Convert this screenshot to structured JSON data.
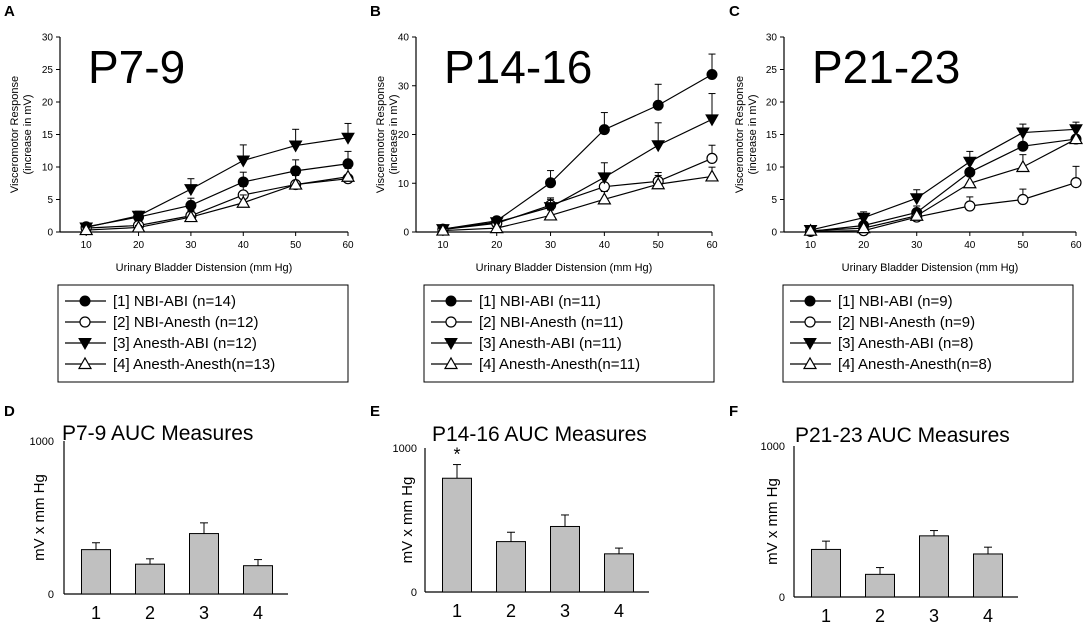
{
  "chart_data": [
    {
      "type": "line",
      "panel": "A",
      "title": "P7-9",
      "xlabel": "Urinary Bladder Distension (mm Hg)",
      "ylabel": "Visceromotor Response (increase in mV)",
      "ylabel_lines": [
        "Visceromotor Response",
        "(increase in mV)"
      ],
      "xlim": [
        5,
        60
      ],
      "ylim": [
        0,
        30
      ],
      "x": [
        10,
        20,
        30,
        40,
        50,
        60
      ],
      "xticks": [
        "10",
        "20",
        "30",
        "40",
        "50",
        "60"
      ],
      "yticks": [
        "0",
        "5",
        "10",
        "15",
        "20",
        "25",
        "30"
      ],
      "legend_placement": "below",
      "series": [
        {
          "name": "[1] NBI-ABI (n=14)",
          "marker": "circle-filled",
          "values": [
            0.8,
            2.3,
            4.1,
            7.7,
            9.4,
            10.5
          ],
          "errors": [
            0.4,
            0.6,
            1.1,
            1.5,
            1.7,
            1.9
          ]
        },
        {
          "name": "[2] NBI-Anesth (n=12)",
          "marker": "circle-open",
          "values": [
            0.6,
            1.0,
            2.5,
            5.7,
            7.3,
            8.2
          ],
          "errors": [
            0.3,
            0.4,
            0.8,
            1.3,
            1.4,
            1.6
          ]
        },
        {
          "name": "[3] Anesth-ABI (n=12)",
          "marker": "triangle-down-filled",
          "values": [
            0.7,
            2.5,
            6.6,
            11.0,
            13.3,
            14.5
          ],
          "errors": [
            0.3,
            0.7,
            1.6,
            2.4,
            2.5,
            2.2
          ]
        },
        {
          "name": "[4] Anesth-Anesth(n=13)",
          "marker": "triangle-up-open",
          "values": [
            0.3,
            0.7,
            2.3,
            4.5,
            7.3,
            8.5
          ],
          "errors": [
            0.2,
            0.3,
            0.8,
            1.2,
            1.4,
            1.3
          ]
        }
      ]
    },
    {
      "type": "line",
      "panel": "B",
      "title": "P14-16",
      "xlabel": "Urinary Bladder Distension (mm Hg)",
      "ylabel": "Visceromotor Response (increase in mV)",
      "ylabel_lines": [
        "Visceromotor Response",
        "(increase in mV)"
      ],
      "xlim": [
        5,
        60
      ],
      "ylim": [
        0,
        40
      ],
      "x": [
        10,
        20,
        30,
        40,
        50,
        60
      ],
      "xticks": [
        "10",
        "20",
        "30",
        "40",
        "50",
        "60"
      ],
      "yticks": [
        "0",
        "10",
        "20",
        "30",
        "40"
      ],
      "legend_placement": "below",
      "series": [
        {
          "name": "[1] NBI-ABI (n=11)",
          "marker": "circle-filled",
          "values": [
            0.6,
            2.3,
            10.1,
            21.0,
            26.0,
            32.3
          ],
          "errors": [
            0.4,
            0.8,
            2.5,
            3.5,
            4.3,
            4.2
          ]
        },
        {
          "name": "[2] NBI-Anesth (n=11)",
          "marker": "circle-open",
          "values": [
            0.5,
            1.8,
            5.5,
            9.3,
            10.4,
            15.1
          ],
          "errors": [
            0.3,
            0.7,
            1.5,
            2.3,
            1.8,
            2.7
          ]
        },
        {
          "name": "[3] Anesth-ABI (n=11)",
          "marker": "triangle-down-filled",
          "values": [
            0.6,
            2.0,
            5.1,
            11.2,
            17.8,
            23.1
          ],
          "errors": [
            0.3,
            0.8,
            1.6,
            3.0,
            4.6,
            5.3
          ]
        },
        {
          "name": "[4] Anesth-Anesth(n=11)",
          "marker": "triangle-up-open",
          "values": [
            0.3,
            0.8,
            3.4,
            6.7,
            9.8,
            11.4
          ],
          "errors": [
            0.2,
            0.4,
            1.1,
            1.6,
            1.8,
            1.9
          ]
        }
      ]
    },
    {
      "type": "line",
      "panel": "C",
      "title": "P21-23",
      "xlabel": "Urinary Bladder Distension (mm Hg)",
      "ylabel": "Visceromotor Response (increase in mV)",
      "ylabel_lines": [
        "Visceromotor Response",
        "(increase in mV)"
      ],
      "xlim": [
        5,
        60
      ],
      "ylim": [
        0,
        30
      ],
      "x": [
        10,
        20,
        30,
        40,
        50,
        60
      ],
      "xticks": [
        "10",
        "20",
        "30",
        "40",
        "50",
        "60"
      ],
      "yticks": [
        "0",
        "5",
        "10",
        "15",
        "20",
        "25",
        "30"
      ],
      "legend_placement": "below",
      "series": [
        {
          "name": "[1] NBI-ABI (n=9)",
          "marker": "circle-filled",
          "values": [
            0.1,
            1.0,
            3.0,
            9.2,
            13.2,
            14.3
          ],
          "errors": [
            0.1,
            0.5,
            1.0,
            1.8,
            2.3,
            2.0
          ]
        },
        {
          "name": "[2] NBI-Anesth (n=9)",
          "marker": "circle-open",
          "values": [
            0.1,
            0.2,
            2.3,
            4.0,
            5.0,
            7.6
          ],
          "errors": [
            0.1,
            0.2,
            0.9,
            1.4,
            1.6,
            2.5
          ]
        },
        {
          "name": "[3] Anesth-ABI (n=8)",
          "marker": "triangle-down-filled",
          "values": [
            0.3,
            2.2,
            5.2,
            10.8,
            15.3,
            15.8
          ],
          "errors": [
            0.2,
            0.9,
            1.3,
            1.6,
            1.3,
            1.1
          ]
        },
        {
          "name": "[4] Anesth-Anesth(n=8)",
          "marker": "triangle-up-open",
          "values": [
            0.2,
            0.6,
            2.5,
            7.5,
            10.0,
            14.3
          ],
          "errors": [
            0.1,
            0.3,
            0.8,
            1.7,
            1.9,
            1.8
          ]
        }
      ]
    },
    {
      "type": "bar",
      "panel": "D",
      "title": "P7-9 AUC Measures",
      "ylabel": "mV x mm Hg",
      "ylim": [
        0,
        1000
      ],
      "yticks": [
        "0",
        "1000"
      ],
      "categories": [
        "1",
        "2",
        "3",
        "4"
      ],
      "values": [
        290,
        195,
        395,
        185
      ],
      "errors": [
        45,
        35,
        70,
        40
      ]
    },
    {
      "type": "bar",
      "panel": "E",
      "title": "P14-16 AUC Measures",
      "ylabel": "mV x mm Hg",
      "ylim": [
        0,
        1000
      ],
      "yticks": [
        "0",
        "1000"
      ],
      "categories": [
        "1",
        "2",
        "3",
        "4"
      ],
      "values": [
        790,
        350,
        455,
        265
      ],
      "errors": [
        95,
        65,
        80,
        40
      ],
      "annotations": [
        {
          "category": "1",
          "text": "*"
        }
      ]
    },
    {
      "type": "bar",
      "panel": "F",
      "title": "P21-23 AUC Measures",
      "ylabel": "mV x mm Hg",
      "ylim": [
        0,
        1000
      ],
      "yticks": [
        "0",
        "1000"
      ],
      "categories": [
        "1",
        "2",
        "3",
        "4"
      ],
      "values": [
        315,
        150,
        405,
        285
      ],
      "errors": [
        55,
        45,
        35,
        45
      ]
    }
  ]
}
